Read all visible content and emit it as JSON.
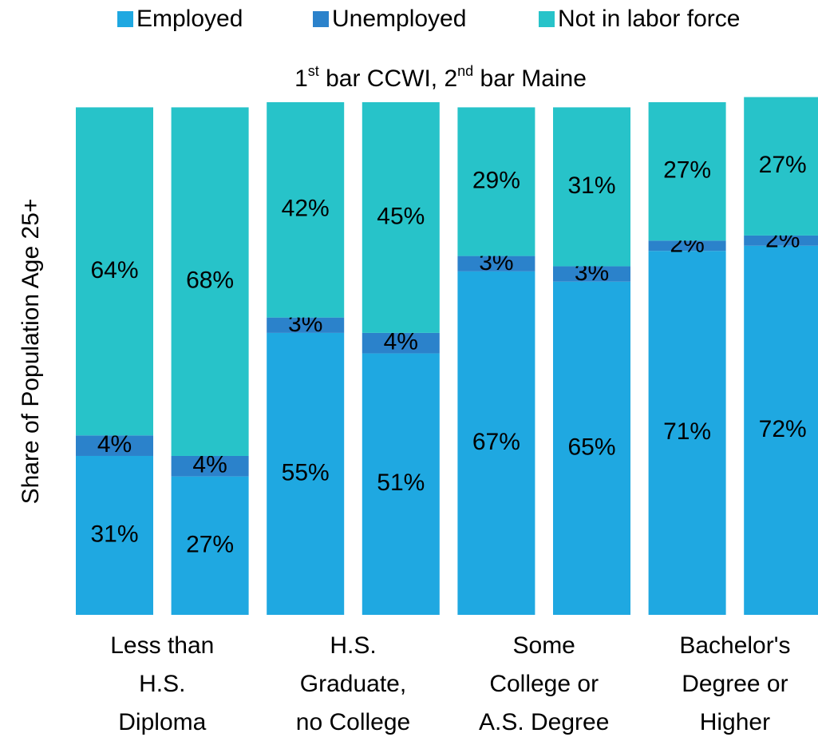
{
  "chart_data": {
    "type": "stacked_bar",
    "subtitle": [
      {
        "text": "1"
      },
      {
        "text": "st",
        "sup": true
      },
      {
        "text": " bar CCWI, 2"
      },
      {
        "text": "nd",
        "sup": true
      },
      {
        "text": " bar Maine"
      }
    ],
    "ylabel": "Share of Population Age 25+",
    "categories": [
      [
        "Less than",
        "H.S.",
        "Diploma"
      ],
      [
        "H.S.",
        "Graduate,",
        "no College"
      ],
      [
        "Some",
        "College or",
        "A.S. Degree"
      ],
      [
        "Bachelor's",
        "Degree or",
        "Higher"
      ]
    ],
    "series": [
      {
        "name": "Employed",
        "color": "#1fa8e1",
        "values": [
          [
            31,
            27
          ],
          [
            55,
            51
          ],
          [
            67,
            65
          ],
          [
            71,
            72
          ]
        ],
        "value_labels": [
          [
            "31%",
            "27%"
          ],
          [
            "55%",
            "51%"
          ],
          [
            "67%",
            "65%"
          ],
          [
            "71%",
            "72%"
          ]
        ]
      },
      {
        "name": "Unemployed",
        "color": "#2b82cb",
        "values": [
          [
            4,
            4
          ],
          [
            3,
            4
          ],
          [
            3,
            3
          ],
          [
            2,
            2
          ]
        ],
        "value_labels": [
          [
            "4%",
            "4%"
          ],
          [
            "3%",
            "4%"
          ],
          [
            "3%",
            "3%"
          ],
          [
            "2%",
            "2%"
          ]
        ]
      },
      {
        "name": "Not in labor force",
        "color": "#27c3c9",
        "values": [
          [
            64,
            68
          ],
          [
            42,
            45
          ],
          [
            29,
            31
          ],
          [
            27,
            27
          ]
        ],
        "value_labels": [
          [
            "64%",
            "68%"
          ],
          [
            "42%",
            "45%"
          ],
          [
            "29%",
            "31%"
          ],
          [
            "27%",
            "27%"
          ]
        ]
      }
    ],
    "ylim": [
      0,
      100
    ],
    "legend": "top"
  }
}
